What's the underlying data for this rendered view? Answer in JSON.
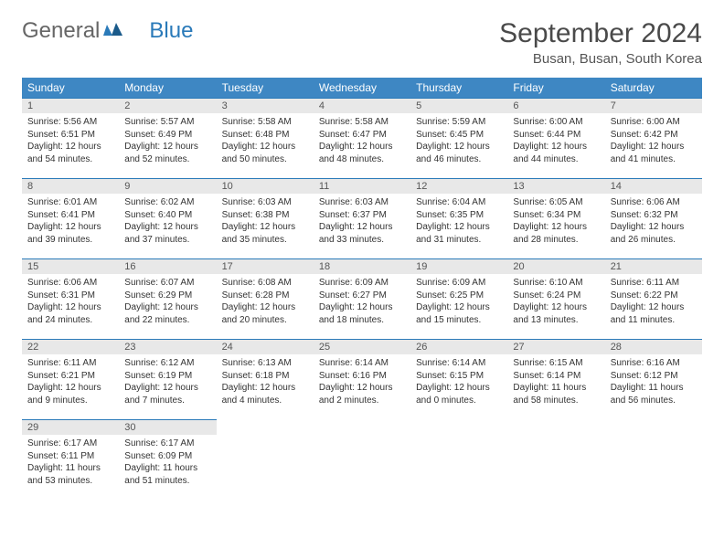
{
  "logo": {
    "text_general": "General",
    "text_blue": "Blue"
  },
  "header": {
    "month_title": "September 2024",
    "location": "Busan, Busan, South Korea"
  },
  "colors": {
    "header_bg": "#3e87c3",
    "header_text": "#ffffff",
    "daynum_bg": "#e8e8e8",
    "daynum_border": "#2a7ab9",
    "body_text": "#333333",
    "logo_general": "#666666",
    "logo_blue": "#2a7ab9"
  },
  "weekdays": [
    "Sunday",
    "Monday",
    "Tuesday",
    "Wednesday",
    "Thursday",
    "Friday",
    "Saturday"
  ],
  "days": [
    {
      "n": "1",
      "sr": "5:56 AM",
      "ss": "6:51 PM",
      "dl": "12 hours and 54 minutes."
    },
    {
      "n": "2",
      "sr": "5:57 AM",
      "ss": "6:49 PM",
      "dl": "12 hours and 52 minutes."
    },
    {
      "n": "3",
      "sr": "5:58 AM",
      "ss": "6:48 PM",
      "dl": "12 hours and 50 minutes."
    },
    {
      "n": "4",
      "sr": "5:58 AM",
      "ss": "6:47 PM",
      "dl": "12 hours and 48 minutes."
    },
    {
      "n": "5",
      "sr": "5:59 AM",
      "ss": "6:45 PM",
      "dl": "12 hours and 46 minutes."
    },
    {
      "n": "6",
      "sr": "6:00 AM",
      "ss": "6:44 PM",
      "dl": "12 hours and 44 minutes."
    },
    {
      "n": "7",
      "sr": "6:00 AM",
      "ss": "6:42 PM",
      "dl": "12 hours and 41 minutes."
    },
    {
      "n": "8",
      "sr": "6:01 AM",
      "ss": "6:41 PM",
      "dl": "12 hours and 39 minutes."
    },
    {
      "n": "9",
      "sr": "6:02 AM",
      "ss": "6:40 PM",
      "dl": "12 hours and 37 minutes."
    },
    {
      "n": "10",
      "sr": "6:03 AM",
      "ss": "6:38 PM",
      "dl": "12 hours and 35 minutes."
    },
    {
      "n": "11",
      "sr": "6:03 AM",
      "ss": "6:37 PM",
      "dl": "12 hours and 33 minutes."
    },
    {
      "n": "12",
      "sr": "6:04 AM",
      "ss": "6:35 PM",
      "dl": "12 hours and 31 minutes."
    },
    {
      "n": "13",
      "sr": "6:05 AM",
      "ss": "6:34 PM",
      "dl": "12 hours and 28 minutes."
    },
    {
      "n": "14",
      "sr": "6:06 AM",
      "ss": "6:32 PM",
      "dl": "12 hours and 26 minutes."
    },
    {
      "n": "15",
      "sr": "6:06 AM",
      "ss": "6:31 PM",
      "dl": "12 hours and 24 minutes."
    },
    {
      "n": "16",
      "sr": "6:07 AM",
      "ss": "6:29 PM",
      "dl": "12 hours and 22 minutes."
    },
    {
      "n": "17",
      "sr": "6:08 AM",
      "ss": "6:28 PM",
      "dl": "12 hours and 20 minutes."
    },
    {
      "n": "18",
      "sr": "6:09 AM",
      "ss": "6:27 PM",
      "dl": "12 hours and 18 minutes."
    },
    {
      "n": "19",
      "sr": "6:09 AM",
      "ss": "6:25 PM",
      "dl": "12 hours and 15 minutes."
    },
    {
      "n": "20",
      "sr": "6:10 AM",
      "ss": "6:24 PM",
      "dl": "12 hours and 13 minutes."
    },
    {
      "n": "21",
      "sr": "6:11 AM",
      "ss": "6:22 PM",
      "dl": "12 hours and 11 minutes."
    },
    {
      "n": "22",
      "sr": "6:11 AM",
      "ss": "6:21 PM",
      "dl": "12 hours and 9 minutes."
    },
    {
      "n": "23",
      "sr": "6:12 AM",
      "ss": "6:19 PM",
      "dl": "12 hours and 7 minutes."
    },
    {
      "n": "24",
      "sr": "6:13 AM",
      "ss": "6:18 PM",
      "dl": "12 hours and 4 minutes."
    },
    {
      "n": "25",
      "sr": "6:14 AM",
      "ss": "6:16 PM",
      "dl": "12 hours and 2 minutes."
    },
    {
      "n": "26",
      "sr": "6:14 AM",
      "ss": "6:15 PM",
      "dl": "12 hours and 0 minutes."
    },
    {
      "n": "27",
      "sr": "6:15 AM",
      "ss": "6:14 PM",
      "dl": "11 hours and 58 minutes."
    },
    {
      "n": "28",
      "sr": "6:16 AM",
      "ss": "6:12 PM",
      "dl": "11 hours and 56 minutes."
    },
    {
      "n": "29",
      "sr": "6:17 AM",
      "ss": "6:11 PM",
      "dl": "11 hours and 53 minutes."
    },
    {
      "n": "30",
      "sr": "6:17 AM",
      "ss": "6:09 PM",
      "dl": "11 hours and 51 minutes."
    }
  ],
  "labels": {
    "sunrise": "Sunrise:",
    "sunset": "Sunset:",
    "daylight": "Daylight:"
  },
  "layout": {
    "first_day_offset": 0,
    "total_cells": 35
  }
}
